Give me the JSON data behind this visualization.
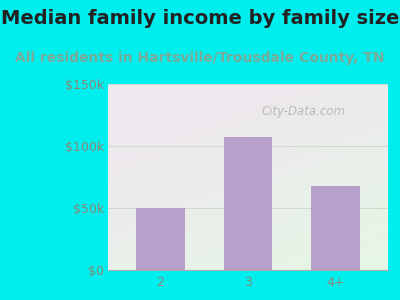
{
  "title": "Median family income by family size",
  "subtitle": "All residents in Hartsville/Trousdale County, TN",
  "categories": [
    "2",
    "3",
    "4+"
  ],
  "values": [
    50000,
    107000,
    68000
  ],
  "bar_color": "#b8a0cc",
  "title_fontsize": 14,
  "subtitle_fontsize": 10,
  "subtitle_color": "#7aaa99",
  "title_color": "#222222",
  "ylim": [
    0,
    150000
  ],
  "yticks": [
    0,
    50000,
    100000,
    150000
  ],
  "ytick_labels": [
    "$0",
    "$50k",
    "$100k",
    "$150k"
  ],
  "background_color": "#00eeee",
  "plot_bg_color_tl": "#d8eecc",
  "plot_bg_color_tr": "#eef8f0",
  "plot_bg_color_bl": "#e8f5de",
  "plot_bg_color_br": "#f8fff8",
  "watermark": "City-Data.com",
  "tick_color": "#888877",
  "tick_fontsize": 9,
  "grid_color": "#ccddcc"
}
